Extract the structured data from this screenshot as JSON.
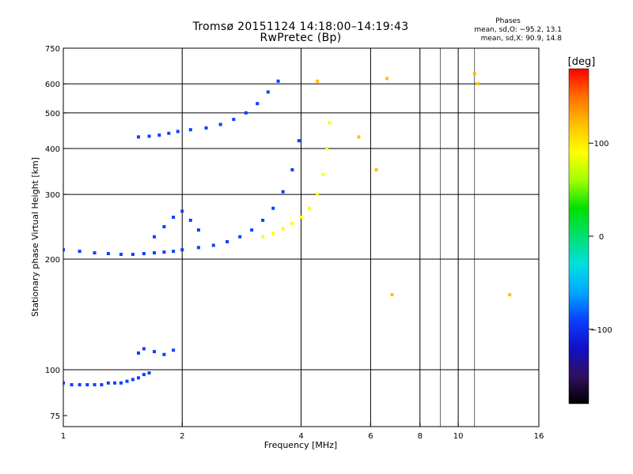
{
  "header": {
    "title_line1": "Tromsø 20151124 14:18:00–14:19:43",
    "title_line2": "RwPretec (Bp)"
  },
  "stats": {
    "heading": "Phases",
    "line1": "mean, sd,O: −95.2, 13.1",
    "line2": "mean, sd,X:  90.9, 14.8"
  },
  "colorbar": {
    "unit_label": "[deg]",
    "ticks": [
      {
        "value": 100,
        "label": "100"
      },
      {
        "value": 0,
        "label": "0"
      },
      {
        "value": -100,
        "label": "−100"
      }
    ],
    "range": [
      -180,
      180
    ]
  },
  "chart_data": {
    "type": "scatter",
    "title": "Tromsø 20151124 14:18:00–14:19:43",
    "subtitle": "RwPretec (Bp)",
    "xlabel": "Frequency [MHz]",
    "ylabel": "Stationary phase Virtual Height [km]",
    "xscale": "log",
    "yscale": "log",
    "xlim": [
      1,
      16
    ],
    "ylim": [
      70,
      750
    ],
    "grid": true,
    "x_ticks": [
      {
        "value": 1,
        "label": "1"
      },
      {
        "value": 2,
        "label": "2"
      },
      {
        "value": 4,
        "label": "4"
      },
      {
        "value": 6,
        "label": "6"
      },
      {
        "value": 8,
        "label": "8"
      },
      {
        "value": 10,
        "label": "10"
      },
      {
        "value": 16,
        "label": "16"
      }
    ],
    "y_ticks": [
      {
        "value": 75,
        "label": "75"
      },
      {
        "value": 100,
        "label": "100"
      },
      {
        "value": 200,
        "label": "200"
      },
      {
        "value": 300,
        "label": "300"
      },
      {
        "value": 400,
        "label": "400"
      },
      {
        "value": 500,
        "label": "500"
      },
      {
        "value": 600,
        "label": "600"
      },
      {
        "value": 750,
        "label": "750"
      }
    ],
    "major_grid_x": [
      2,
      4,
      6,
      8,
      10
    ],
    "minor_grid_x": [
      9,
      11
    ],
    "grid_y": [
      100,
      200,
      300,
      400,
      500,
      600
    ],
    "color_scale": [
      "#000000",
      "#301060",
      "#1010c8",
      "#0a40ff",
      "#00a8ff",
      "#00e0e0",
      "#00e070",
      "#00e000",
      "#a0ff00",
      "#ffff00",
      "#ffc000",
      "#ff7000",
      "#ff0000"
    ],
    "series": [
      {
        "x": [
          1.0,
          1.05,
          1.1,
          1.15,
          1.2,
          1.25,
          1.3,
          1.35,
          1.4,
          1.45,
          1.5,
          1.55,
          1.6,
          1.65
        ],
        "y": [
          92,
          91,
          91,
          91,
          91,
          91,
          92,
          92,
          92,
          93,
          94,
          95,
          97,
          98
        ],
        "phase": -100
      },
      {
        "x": [
          1.55,
          1.6,
          1.7,
          1.8,
          1.9
        ],
        "y": [
          111,
          114,
          112,
          110,
          113
        ],
        "phase": -90
      },
      {
        "x": [
          1.55,
          1.65,
          1.75,
          1.85,
          1.95,
          2.1,
          2.3,
          2.5,
          2.7,
          2.9,
          3.1,
          3.3,
          3.5
        ],
        "y": [
          430,
          432,
          435,
          440,
          445,
          450,
          455,
          465,
          480,
          500,
          530,
          570,
          610
        ],
        "phase": -95
      },
      {
        "x": [
          1.0,
          1.1,
          1.2,
          1.3,
          1.4,
          1.5,
          1.6,
          1.7,
          1.8,
          1.9,
          2.0,
          2.2,
          2.4,
          2.6,
          2.8,
          3.0,
          3.2,
          3.4,
          3.6,
          3.8,
          3.95
        ],
        "y": [
          212,
          210,
          208,
          207,
          206,
          206,
          207,
          208,
          209,
          210,
          212,
          215,
          218,
          223,
          230,
          240,
          255,
          275,
          305,
          350,
          420
        ],
        "phase": -95
      },
      {
        "x": [
          3.2,
          3.4,
          3.6,
          3.8,
          4.0,
          4.2,
          4.4,
          4.55,
          4.65,
          4.72
        ],
        "y": [
          230,
          235,
          242,
          250,
          260,
          275,
          300,
          340,
          400,
          470
        ],
        "phase": 100
      },
      {
        "x": [
          1.7,
          1.8,
          1.9,
          2.0,
          2.1,
          2.2
        ],
        "y": [
          230,
          245,
          260,
          270,
          255,
          240
        ],
        "phase": -90
      },
      {
        "x": [
          4.4,
          5.6,
          6.2,
          6.6,
          6.8,
          11.0,
          11.2,
          13.5
        ],
        "y": [
          610,
          430,
          350,
          620,
          160,
          640,
          600,
          160
        ],
        "phase": 110
      }
    ]
  }
}
